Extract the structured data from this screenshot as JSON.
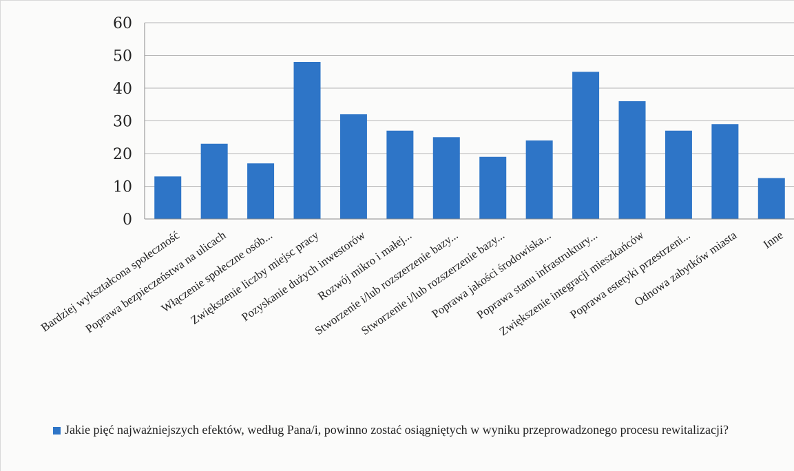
{
  "chart_data": {
    "type": "bar",
    "title": "",
    "xlabel": "",
    "ylabel": "",
    "ylim": [
      0,
      60
    ],
    "yticks": [
      0,
      10,
      20,
      30,
      40,
      50,
      60
    ],
    "grid": true,
    "legend_position": "bottom",
    "bar_color": "#2e75c7",
    "categories": [
      "Bardziej wykształcona społeczność",
      "Poprawa bezpieczeństwa na ulicach",
      "Włączenie społeczne osób...",
      "Zwiększenie liczby miejsc pracy",
      "Pozyskanie dużych inwestorów",
      "Rozwój mikro i małej...",
      "Stworzenie i/lub rozszerzenie bazy...",
      "Stworzenie i/lub rozszerzenie bazy...",
      "Poprawa jakości środowiska...",
      "Poprawa stanu infrastruktury...",
      "Zwiększenie integracji mieszkańców",
      "Poprawa estetyki przestrzeni...",
      "Odnowa zabytków miasta",
      "Inne"
    ],
    "series": [
      {
        "name": "Jakie pięć najważniejszych efektów, według Pana/i, powinno zostać osiągniętych w wyniku przeprowadzonego procesu rewitalizacji?",
        "values": [
          13,
          23,
          17,
          48,
          32,
          27,
          25,
          19,
          24,
          45,
          36,
          27,
          29,
          12.5
        ]
      }
    ]
  }
}
